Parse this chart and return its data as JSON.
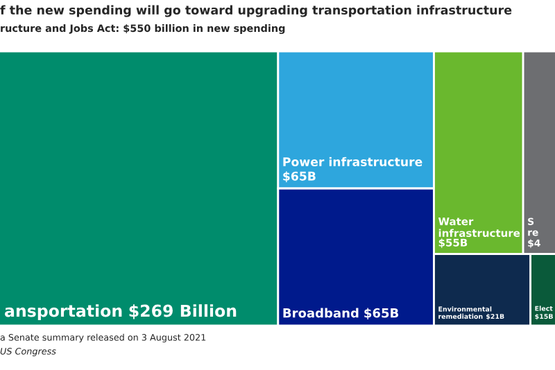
{
  "chart_data": {
    "type": "other",
    "title": "f the new spending will go toward upgrading transportation infrastructure",
    "subtitle": "ructure and Jobs Act: $550 billion in new spending",
    "categories": [
      "ansportation",
      "Power infrastructure",
      "Broadband",
      "Water\ninfrastructure",
      "S\nre\n$4",
      "Environmental\nremediation",
      "Elect"
    ],
    "values": [
      269,
      65,
      65,
      55,
      null,
      21,
      15
    ],
    "value_labels": [
      "$269 Billion",
      "$65B",
      "$65B",
      "$55B",
      null,
      "$21B",
      "$15B"
    ],
    "colors": [
      "#008c6c",
      "#2ea6dd",
      "#001a8c",
      "#6ab82e",
      "#6d6e71",
      "#0e2a4e",
      "#0a5a3a"
    ],
    "annotations": [
      "a Senate summary released on 3 August 2021",
      "US Congress"
    ]
  }
}
